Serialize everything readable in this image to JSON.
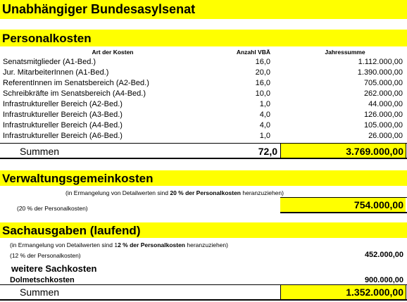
{
  "title": "Unabhängiger Bundesasylsenat",
  "personal": {
    "heading": "Personalkosten",
    "col_art": "Art der Kosten",
    "col_anzahl": "Anzahl VBÄ",
    "col_jahr": "Jahressumme",
    "rows": [
      {
        "art": "Senatsmitglieder (A1-Bed.)",
        "anzahl": "16,0",
        "summe": "1.112.000,00"
      },
      {
        "art": "Jur. MitarbeiterInnen (A1-Bed.)",
        "anzahl": "20,0",
        "summe": "1.390.000,00"
      },
      {
        "art": "ReferentInnen im Senatsbereich (A2-Bed.)",
        "anzahl": "16,0",
        "summe": "705.000,00"
      },
      {
        "art": "Schreibkräfte im Senatsbereich (A4-Bed.)",
        "anzahl": "10,0",
        "summe": "262.000,00"
      },
      {
        "art": "Infrastruktureller Bereich (A2-Bed.)",
        "anzahl": "1,0",
        "summe": "44.000,00"
      },
      {
        "art": "Infrastruktureller Bereich (A3-Bed.)",
        "anzahl": "4,0",
        "summe": "126.000,00"
      },
      {
        "art": "Infrastruktureller Bereich (A4-Bed.)",
        "anzahl": "4,0",
        "summe": "105.000,00"
      },
      {
        "art": "Infrastruktureller Bereich (A6-Bed.)",
        "anzahl": "1,0",
        "summe": "26.000,00"
      }
    ],
    "sum_label": "Summen",
    "sum_anzahl": "72,0",
    "sum_jahr": "3.769.000,00"
  },
  "verwaltung": {
    "heading": "Verwaltungsgemeinkosten",
    "note_a": "(in Ermangelung von Detailwerten sind ",
    "note_b": "20 % der Personalkosten",
    "note_c": " heranzuziehen)",
    "pct_label": "(20 % der Personalkosten)",
    "value": "754.000,00"
  },
  "sach": {
    "heading": "Sachausgaben (laufend)",
    "note_a": "(in Ermangelung von Detailwerten sind 1",
    "note_b": "2 % der Personalkosten",
    "note_c": " heranzuziehen)",
    "pct_label": "(12 % der Personalkosten)",
    "pct_value": "452.000,00",
    "weitere": "weitere Sachkosten",
    "dolm_label": "Dolmetschkosten",
    "dolm_value": "900.000,00",
    "sum_label": "Summen",
    "sum_value": "1.352.000,00"
  }
}
